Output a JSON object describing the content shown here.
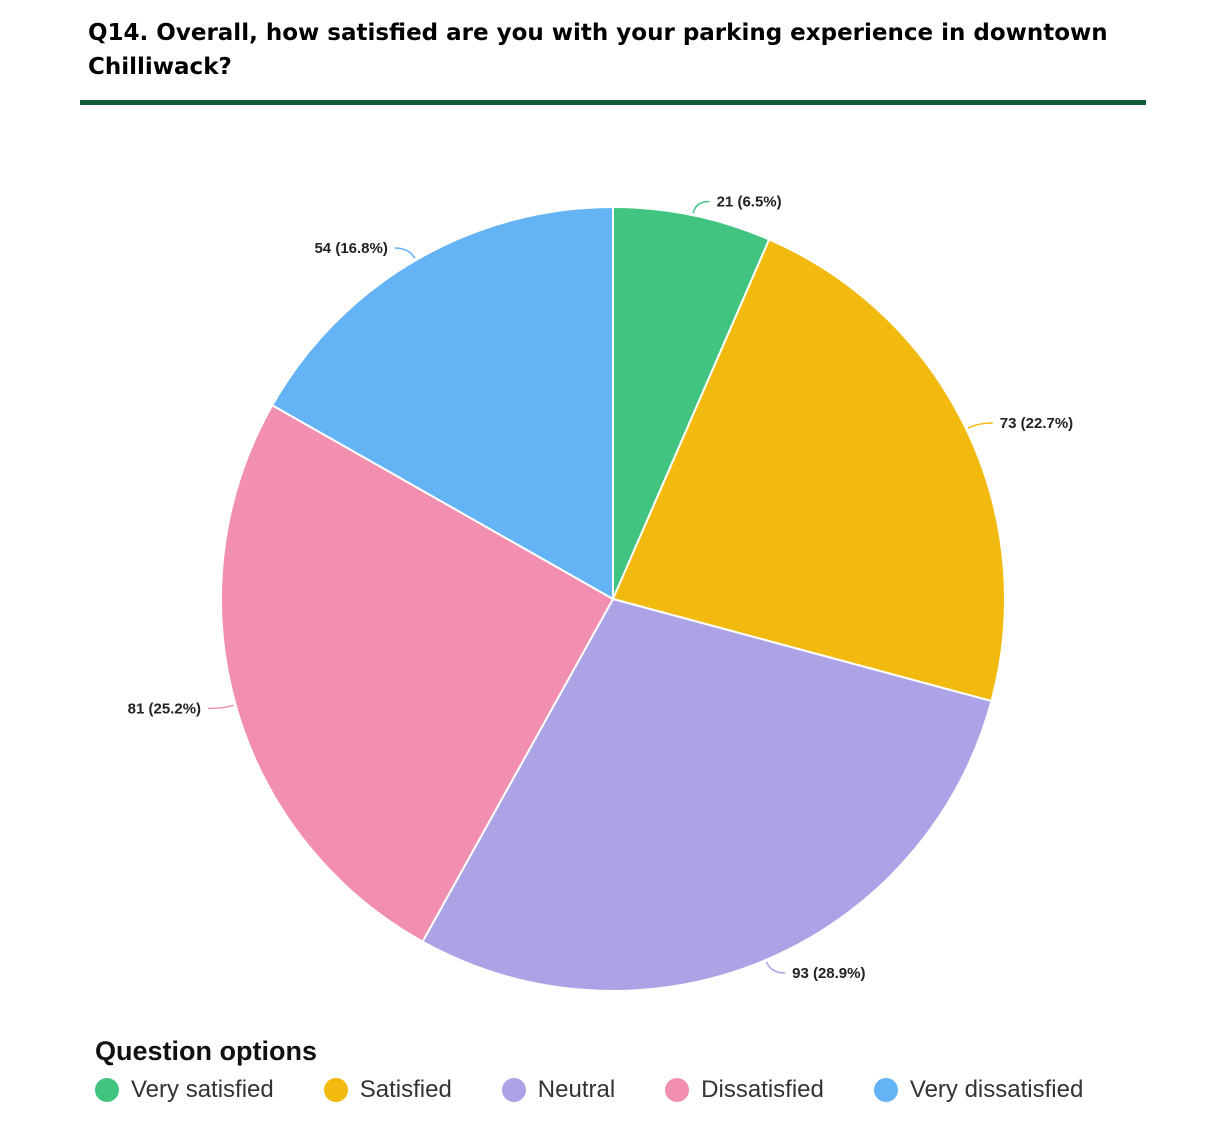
{
  "header": {
    "title": "Q14. Overall, how satisfied are you with your parking experience in downtown Chilliwack?"
  },
  "legend": {
    "title": "Question options",
    "items": [
      {
        "label": "Very satisfied",
        "color": "#40c480"
      },
      {
        "label": "Satisfied",
        "color": "#f2b90f"
      },
      {
        "label": "Neutral",
        "color": "#aba3e5"
      },
      {
        "label": "Dissatisfied",
        "color": "#f28fb0"
      },
      {
        "label": "Very dissatisfied",
        "color": "#63b3f5"
      }
    ]
  },
  "chart_data": {
    "type": "pie",
    "title": "Q14. Overall, how satisfied are you with your parking experience in downtown Chilliwack?",
    "categories": [
      "Very satisfied",
      "Satisfied",
      "Neutral",
      "Dissatisfied",
      "Very dissatisfied"
    ],
    "values": [
      21,
      73,
      93,
      81,
      54
    ],
    "percentages": [
      6.5,
      22.7,
      28.9,
      25.2,
      16.8
    ],
    "data_labels": [
      "21 (6.5%)",
      "73 (22.7%)",
      "93 (28.9%)",
      "81 (25.2%)",
      "54 (16.8%)"
    ],
    "colors": [
      "#40c480",
      "#f2b90f",
      "#aba3e5",
      "#f28fb0",
      "#63b3f5"
    ],
    "start": "12 o'clock",
    "direction": "clockwise",
    "legend_position": "bottom"
  }
}
